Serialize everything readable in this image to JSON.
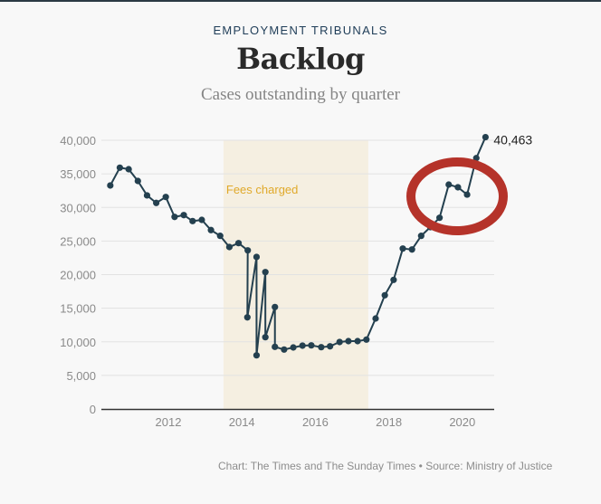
{
  "header": {
    "kicker": "EMPLOYMENT TRIBUNALS",
    "title": "Backlog",
    "subtitle": "Cases outstanding by quarter"
  },
  "footer": "Chart: The Times and The Sunday Times • Source: Ministry of Justice",
  "chart_data": {
    "type": "line",
    "title": "Backlog",
    "subtitle": "Cases outstanding by quarter",
    "xlabel": "",
    "ylabel": "",
    "xlim": [
      2010.2,
      2020.9
    ],
    "ylim": [
      0,
      40000
    ],
    "grid": true,
    "x_ticks": [
      2012,
      2014,
      2016,
      2018,
      2020
    ],
    "x_tick_labels": [
      "2012",
      "2014",
      "2016",
      "2018",
      "2020"
    ],
    "y_ticks": [
      0,
      5000,
      10000,
      15000,
      20000,
      25000,
      30000,
      35000,
      40000
    ],
    "y_tick_labels": [
      "0",
      "5,000",
      "10,000",
      "15,000",
      "20,000",
      "25,000",
      "30,000",
      "35,000",
      "40,000"
    ],
    "shaded_region": {
      "label": "Fees charged",
      "from": 2013.5,
      "to": 2017.44,
      "color": "#f5efe1",
      "label_color": "#e0a92a"
    },
    "end_label": "40,463",
    "series": [
      {
        "name": "Cases outstanding",
        "color": "#24404f",
        "x": [
          2010.42,
          2010.68,
          2010.92,
          2011.17,
          2011.42,
          2011.67,
          2011.93,
          2012.17,
          2012.42,
          2012.66,
          2012.91,
          2013.16,
          2013.41,
          2013.66,
          2013.91,
          2014.16,
          2014.15,
          2014.4,
          2014.4,
          2014.64,
          2014.64,
          2014.9,
          2014.9,
          2015.15,
          2015.4,
          2015.65,
          2015.89,
          2016.16,
          2016.4,
          2016.66,
          2016.9,
          2017.15,
          2017.39,
          2017.64,
          2017.89,
          2018.13,
          2018.38,
          2018.63,
          2018.88,
          2019.13,
          2019.38,
          2019.63,
          2019.88,
          2020.13,
          2020.38,
          2020.63
        ],
        "values": [
          33270,
          35920,
          35690,
          33940,
          31790,
          30670,
          31560,
          28590,
          28860,
          27970,
          28150,
          26630,
          25770,
          24110,
          24690,
          23610,
          13640,
          22630,
          7990,
          20380,
          10680,
          15180,
          9250,
          8850,
          9160,
          9430,
          9470,
          9200,
          9330,
          9970,
          10100,
          10100,
          10330,
          13470,
          16930,
          19220,
          23880,
          23740,
          25770,
          27070,
          28460,
          33400,
          33000,
          31910,
          37340,
          40463
        ]
      }
    ],
    "annotation": {
      "type": "ellipse",
      "color": "#b5332a",
      "around_x": [
        2019.2,
        2020.5
      ]
    }
  }
}
